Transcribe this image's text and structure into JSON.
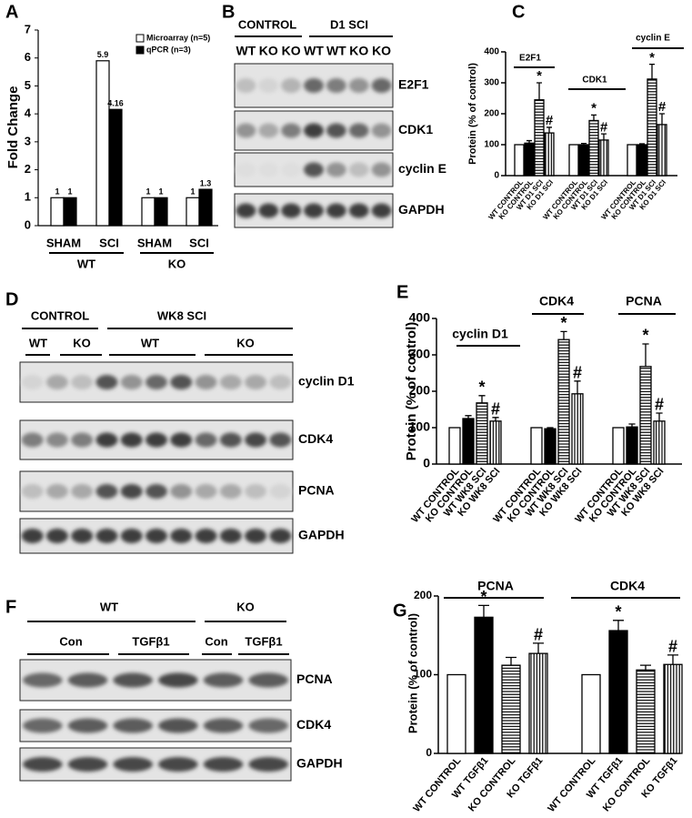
{
  "panel_labels": [
    "A",
    "B",
    "C",
    "D",
    "E",
    "F",
    "G"
  ],
  "chart_data": [
    {
      "type": "grouped-bar",
      "ylabel": "Fold Change",
      "categories": [
        "SHAM",
        "SCI",
        "SHAM",
        "SCI"
      ],
      "group_labels": [
        "WT",
        "KO"
      ],
      "series": [
        {
          "name": "Microarray (n=5)",
          "color": "#ffffff",
          "values": [
            1,
            5.9,
            1,
            1
          ]
        },
        {
          "name": "qPCR (n=3)",
          "color": "#000000",
          "values": [
            1,
            4.16,
            1,
            1.3
          ]
        }
      ],
      "ylim": [
        0,
        7
      ],
      "yticks": [
        0,
        1,
        2,
        3,
        4,
        5,
        6,
        7
      ],
      "legend": "upper right"
    },
    {
      "type": "grouped-bar-error",
      "ylabel": "Protein (% of control)",
      "ylim": [
        0,
        400
      ],
      "yticks": [
        0,
        100,
        200,
        300,
        400
      ],
      "fills": [
        "white",
        "black",
        "hstripe",
        "vstripe"
      ],
      "groups": [
        {
          "name": "E2F1",
          "categories": [
            "WT CONTROL",
            "KO CONTROL",
            "WT D1 SCI",
            "KO D1 SCI"
          ],
          "values": [
            100,
            105,
            245,
            138
          ],
          "errors": [
            null,
            8,
            55,
            18
          ],
          "annotations": [
            null,
            null,
            "*",
            "#"
          ]
        },
        {
          "name": "CDK1",
          "categories": [
            "WT CONTROL",
            "KO CONTROL",
            "WT D1 SCI",
            "KO D1 SCI"
          ],
          "values": [
            100,
            100,
            178,
            115
          ],
          "errors": [
            null,
            4,
            18,
            20
          ],
          "annotations": [
            null,
            null,
            "*",
            "#"
          ]
        },
        {
          "name": "cyclin E",
          "categories": [
            "WT CONTROL",
            "KO CONTROL",
            "WT D1 SCI",
            "KO D1 SCI"
          ],
          "values": [
            100,
            100,
            312,
            165
          ],
          "errors": [
            null,
            3,
            48,
            35
          ],
          "annotations": [
            null,
            null,
            "*",
            "#"
          ]
        }
      ]
    },
    {
      "type": "grouped-bar-error",
      "ylabel": "Protein (% of control)",
      "ylim": [
        0,
        400
      ],
      "yticks": [
        0,
        100,
        200,
        300,
        400
      ],
      "fills": [
        "white",
        "black",
        "hstripe",
        "vstripe"
      ],
      "groups": [
        {
          "name": "cyclin D1",
          "categories": [
            "WT CONTROL",
            "KO CONTROL",
            "WT WK8 SCI",
            "KO WK8 SCI"
          ],
          "values": [
            100,
            125,
            168,
            118
          ],
          "errors": [
            null,
            8,
            20,
            10
          ],
          "annotations": [
            null,
            null,
            "*",
            "#"
          ]
        },
        {
          "name": "CDK4",
          "categories": [
            "WT CONTROL",
            "KO CONTROL",
            "WT WK8 SCI",
            "KO WK8 SCI"
          ],
          "values": [
            100,
            97,
            342,
            193
          ],
          "errors": [
            null,
            3,
            22,
            35
          ],
          "annotations": [
            null,
            null,
            "*",
            "#"
          ]
        },
        {
          "name": "PCNA",
          "categories": [
            "WT CONTROL",
            "KO CONTROL",
            "WT WK8 SCI",
            "KO WK8 SCI"
          ],
          "values": [
            100,
            102,
            268,
            118
          ],
          "errors": [
            null,
            8,
            62,
            22
          ],
          "annotations": [
            null,
            null,
            "*",
            "#"
          ]
        }
      ]
    },
    {
      "type": "grouped-bar-error",
      "ylabel": "Protein (% of control)",
      "ylim": [
        0,
        200
      ],
      "yticks": [
        0,
        100,
        200
      ],
      "fills": [
        "white",
        "black",
        "hstripe",
        "vstripe"
      ],
      "groups": [
        {
          "name": "PCNA",
          "categories": [
            "WT CONTROL",
            "WT TGFβ1",
            "KO CONTROL",
            "KO TGFβ1"
          ],
          "values": [
            100,
            173,
            112,
            127
          ],
          "errors": [
            null,
            15,
            10,
            13
          ],
          "annotations": [
            null,
            "*",
            null,
            "#"
          ]
        },
        {
          "name": "CDK4",
          "categories": [
            "WT CONTROL",
            "WT TGFβ1",
            "KO CONTROL",
            "KO TGFβ1"
          ],
          "values": [
            100,
            156,
            106,
            113
          ],
          "errors": [
            null,
            13,
            6,
            12
          ],
          "annotations": [
            null,
            "*",
            null,
            "#"
          ]
        }
      ]
    }
  ],
  "blots": [
    {
      "headers": [
        "CONTROL",
        "D1 SCI"
      ],
      "lanes": [
        "WT",
        "KO",
        "KO",
        "WT",
        "WT",
        "KO",
        "KO"
      ],
      "rows": [
        "E2F1",
        "CDK1",
        "cyclin E",
        "GAPDH"
      ]
    },
    {
      "headers": [
        "CONTROL",
        "WK8 SCI"
      ],
      "subheaders": [
        "WT",
        "KO",
        "WT",
        "KO"
      ],
      "rows": [
        "cyclin D1",
        "CDK4",
        "PCNA",
        "GAPDH"
      ]
    },
    {
      "headers": [
        "WT",
        "KO"
      ],
      "subheaders": [
        "Con",
        "TGFβ1",
        "Con",
        "TGFβ1"
      ],
      "rows": [
        "PCNA",
        "CDK4",
        "GAPDH"
      ]
    }
  ]
}
